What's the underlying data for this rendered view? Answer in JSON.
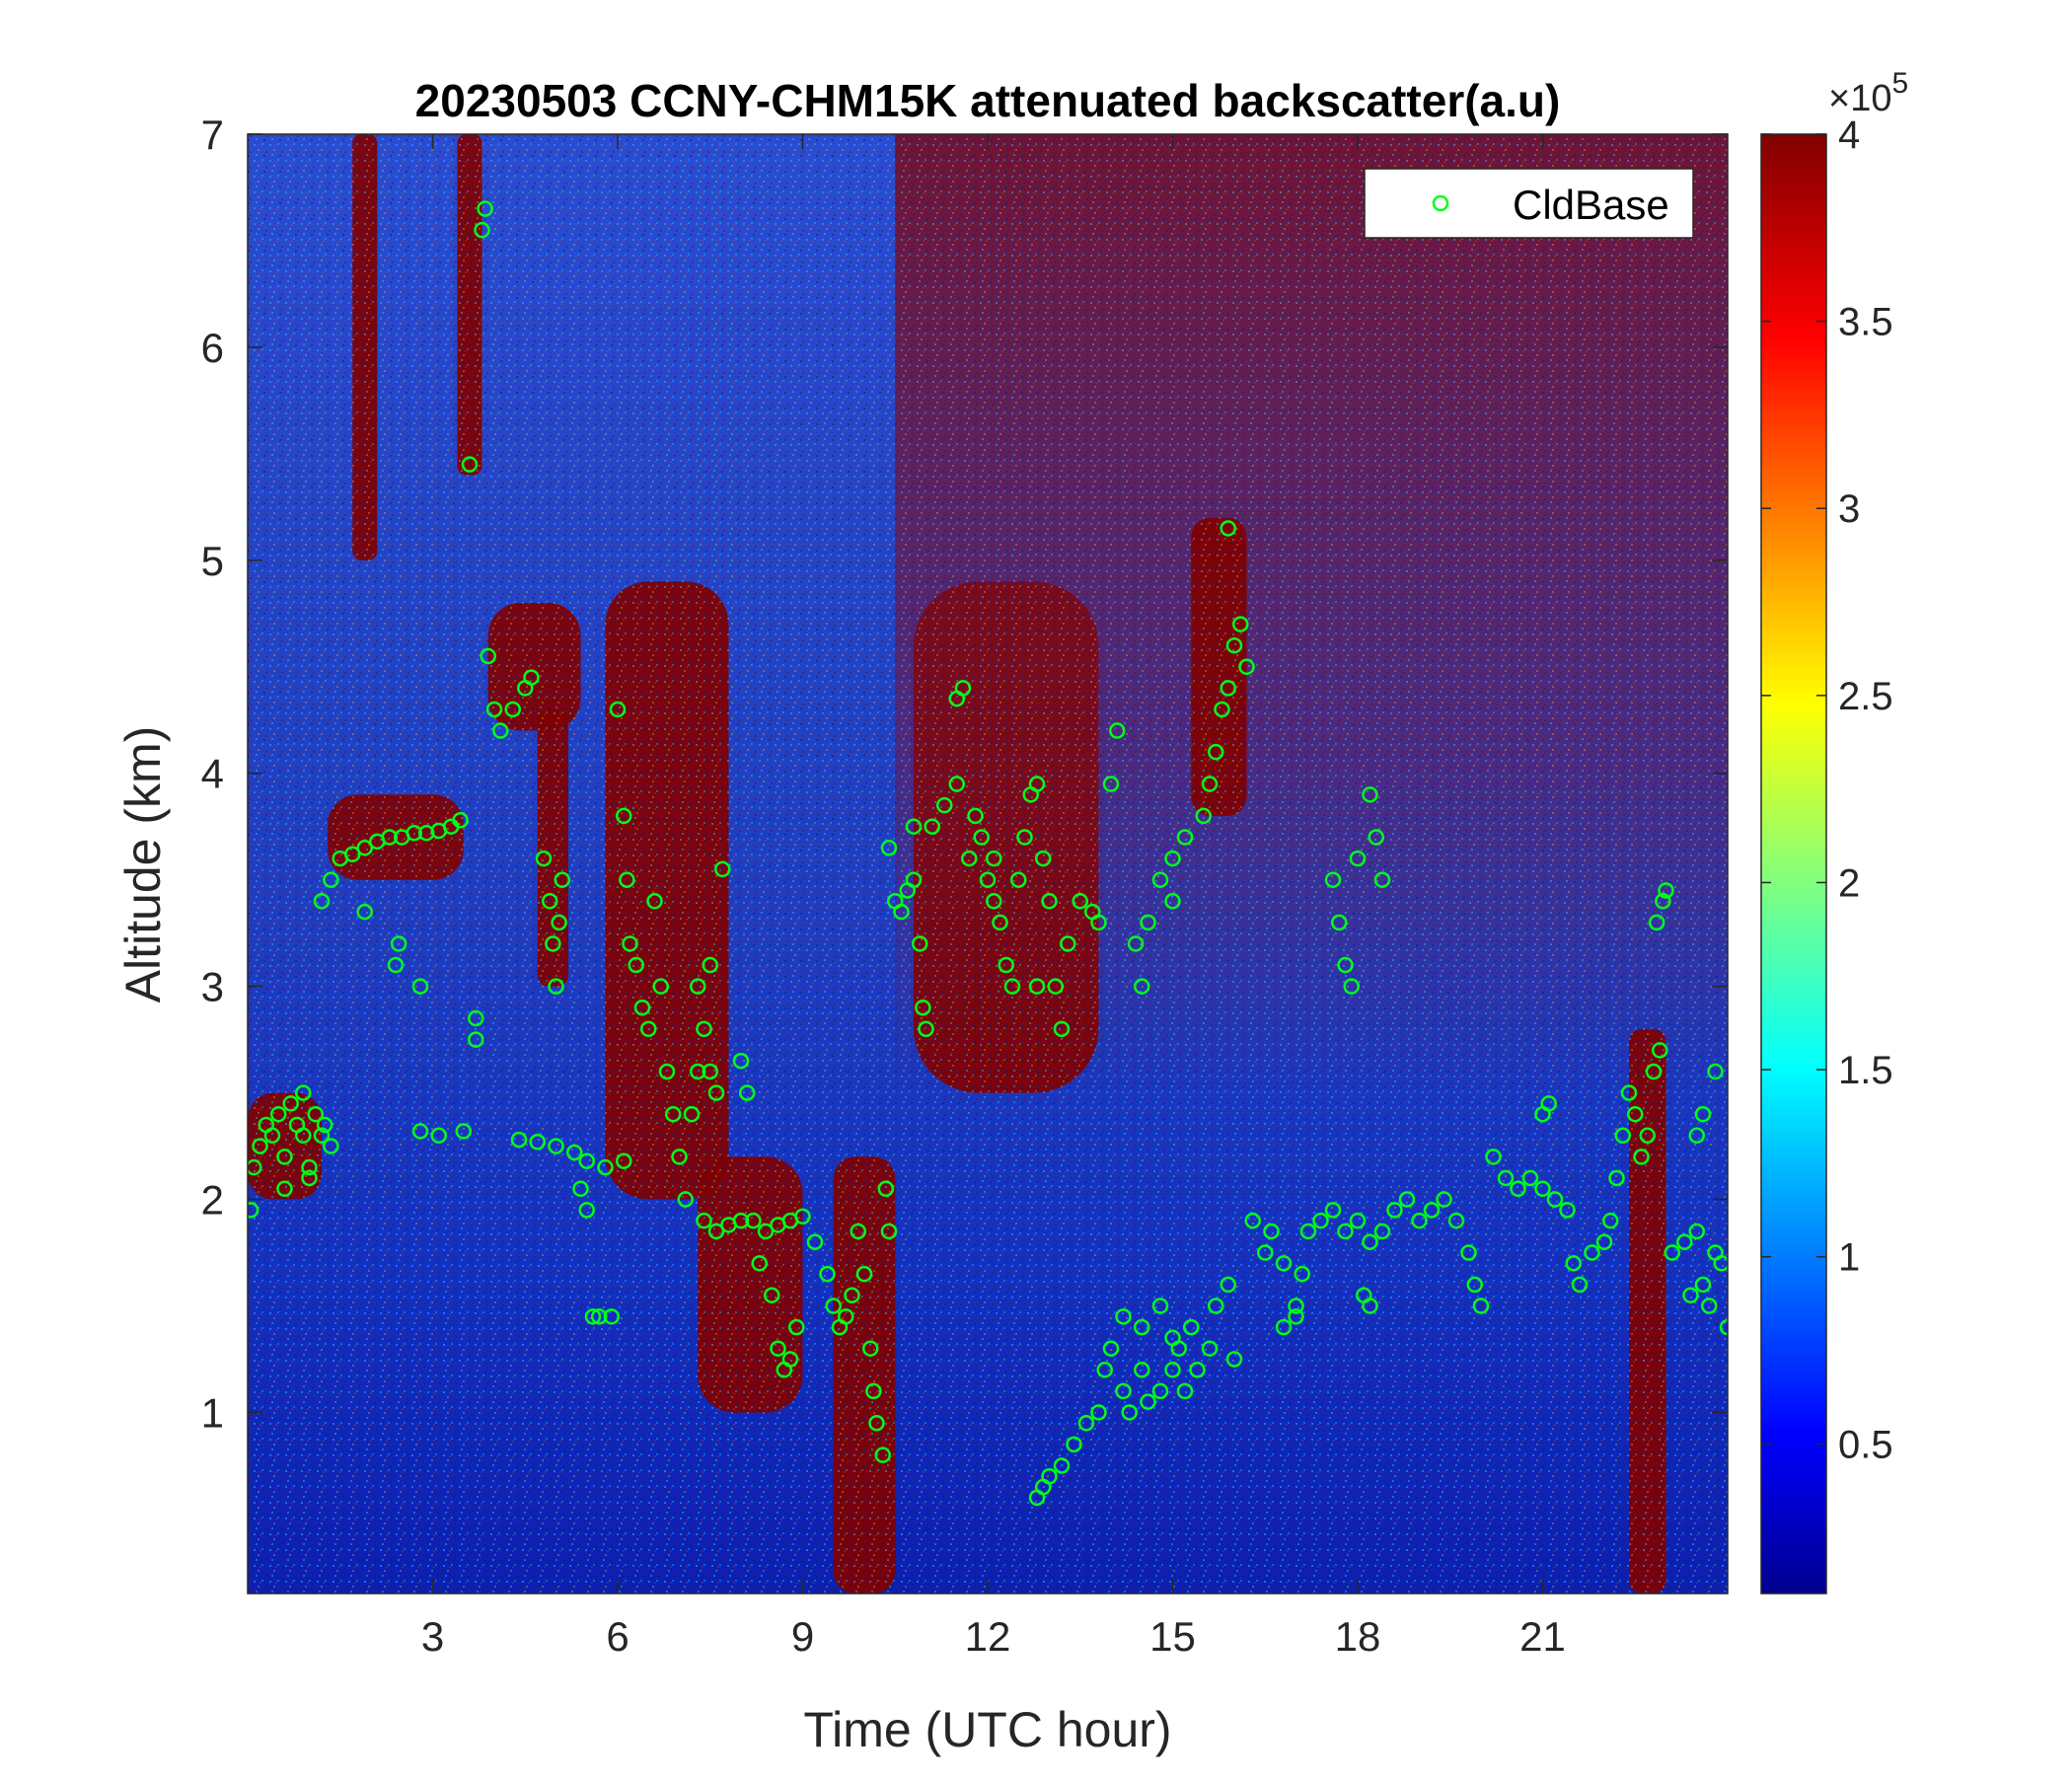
{
  "chart_data": {
    "type": "heatmap",
    "title": "20230503 CCNY-CHM15K attenuated backscatter(a.u)",
    "xlabel": "Time (UTC hour)",
    "ylabel": "Altitude (km)",
    "xlim": [
      0,
      24
    ],
    "ylim": [
      0.15,
      7
    ],
    "xticks": [
      3,
      6,
      9,
      12,
      15,
      18,
      21
    ],
    "xtick_labels": [
      "3",
      "6",
      "9",
      "12",
      "15",
      "18",
      "21"
    ],
    "yticks": [
      1,
      2,
      3,
      4,
      5,
      6,
      7
    ],
    "ytick_labels": [
      "1",
      "2",
      "3",
      "4",
      "5",
      "6",
      "7"
    ],
    "colorbar": {
      "colormap": "jet",
      "range": [
        10000,
        400000
      ],
      "ticks": [
        0.5,
        1,
        1.5,
        2,
        2.5,
        3,
        3.5,
        4
      ],
      "tick_labels": [
        "0.5",
        "1",
        "1.5",
        "2",
        "2.5",
        "3",
        "3.5",
        "4"
      ],
      "exponent_label": "×10",
      "exponent": "5"
    },
    "legend": {
      "position": "top-right",
      "entries": [
        "CldBase"
      ]
    },
    "colors": {
      "marker": "#00ff1a",
      "saturated": "#800000",
      "background_noise": "#1c3fb8",
      "low_clear": "#0a23b4"
    },
    "features": [
      {
        "kind": "cloud",
        "x_range": [
          0,
          1.2
        ],
        "y_range": [
          2.0,
          2.5
        ]
      },
      {
        "kind": "cloud",
        "x_range": [
          1.3,
          3.5
        ],
        "y_range": [
          3.5,
          3.9
        ]
      },
      {
        "kind": "cloud",
        "x_range": [
          1.7,
          2.1
        ],
        "y_range": [
          5.0,
          7.0
        ]
      },
      {
        "kind": "cloud",
        "x_range": [
          3.4,
          3.8
        ],
        "y_range": [
          5.4,
          7.0
        ]
      },
      {
        "kind": "cloud",
        "x_range": [
          3.9,
          5.4
        ],
        "y_range": [
          4.2,
          4.8
        ]
      },
      {
        "kind": "cloud",
        "x_range": [
          4.7,
          5.2
        ],
        "y_range": [
          3.0,
          4.3
        ]
      },
      {
        "kind": "cloud",
        "x_range": [
          5.8,
          7.8
        ],
        "y_range": [
          2.0,
          4.9
        ]
      },
      {
        "kind": "cloud",
        "x_range": [
          7.3,
          9.0
        ],
        "y_range": [
          1.0,
          2.2
        ]
      },
      {
        "kind": "cloud",
        "x_range": [
          9.5,
          10.5
        ],
        "y_range": [
          0.15,
          2.2
        ]
      },
      {
        "kind": "cloud",
        "x_range": [
          10.8,
          13.8
        ],
        "y_range": [
          2.5,
          4.9
        ]
      },
      {
        "kind": "haze",
        "x_range": [
          10.5,
          24.0
        ],
        "y_range": [
          2.5,
          7.0
        ]
      },
      {
        "kind": "cloud",
        "x_range": [
          15.3,
          16.2
        ],
        "y_range": [
          3.8,
          5.2
        ]
      },
      {
        "kind": "cloud",
        "x_range": [
          22.4,
          23.0
        ],
        "y_range": [
          0.15,
          2.8
        ]
      }
    ],
    "series": [
      {
        "name": "CldBase",
        "marker": "circle",
        "points": [
          [
            0.05,
            1.95
          ],
          [
            0.1,
            2.15
          ],
          [
            0.2,
            2.25
          ],
          [
            0.3,
            2.35
          ],
          [
            0.4,
            2.3
          ],
          [
            0.5,
            2.4
          ],
          [
            0.6,
            2.2
          ],
          [
            0.7,
            2.45
          ],
          [
            0.8,
            2.35
          ],
          [
            0.9,
            2.3
          ],
          [
            1.0,
            2.15
          ],
          [
            1.1,
            2.4
          ],
          [
            1.2,
            2.3
          ],
          [
            1.35,
            2.25
          ],
          [
            0.6,
            2.05
          ],
          [
            0.9,
            2.5
          ],
          [
            1.0,
            2.1
          ],
          [
            1.25,
            2.35
          ],
          [
            1.2,
            3.4
          ],
          [
            1.35,
            3.5
          ],
          [
            1.5,
            3.6
          ],
          [
            1.7,
            3.62
          ],
          [
            1.9,
            3.65
          ],
          [
            2.1,
            3.68
          ],
          [
            2.3,
            3.7
          ],
          [
            2.5,
            3.7
          ],
          [
            2.7,
            3.72
          ],
          [
            2.9,
            3.72
          ],
          [
            3.1,
            3.73
          ],
          [
            3.3,
            3.75
          ],
          [
            3.45,
            3.78
          ],
          [
            1.9,
            3.35
          ],
          [
            2.4,
            3.1
          ],
          [
            2.45,
            3.2
          ],
          [
            2.8,
            3.0
          ],
          [
            2.8,
            2.32
          ],
          [
            3.1,
            2.3
          ],
          [
            3.5,
            2.32
          ],
          [
            4.4,
            2.28
          ],
          [
            4.7,
            2.27
          ],
          [
            5.0,
            2.25
          ],
          [
            5.3,
            2.22
          ],
          [
            5.5,
            2.18
          ],
          [
            5.8,
            2.15
          ],
          [
            6.1,
            2.18
          ],
          [
            3.7,
            2.75
          ],
          [
            3.7,
            2.85
          ],
          [
            3.6,
            5.45
          ],
          [
            3.8,
            6.55
          ],
          [
            3.85,
            6.65
          ],
          [
            3.9,
            4.55
          ],
          [
            4.0,
            4.3
          ],
          [
            4.1,
            4.2
          ],
          [
            4.3,
            4.3
          ],
          [
            4.5,
            4.4
          ],
          [
            4.6,
            4.45
          ],
          [
            4.8,
            3.6
          ],
          [
            4.9,
            3.4
          ],
          [
            4.95,
            3.2
          ],
          [
            5.0,
            3.0
          ],
          [
            5.05,
            3.3
          ],
          [
            5.1,
            3.5
          ],
          [
            5.4,
            2.05
          ],
          [
            5.5,
            1.95
          ],
          [
            5.6,
            1.45
          ],
          [
            5.7,
            1.45
          ],
          [
            5.9,
            1.45
          ],
          [
            6.0,
            4.3
          ],
          [
            6.1,
            3.8
          ],
          [
            6.15,
            3.5
          ],
          [
            6.2,
            3.2
          ],
          [
            6.3,
            3.1
          ],
          [
            6.4,
            2.9
          ],
          [
            6.5,
            2.8
          ],
          [
            6.6,
            3.4
          ],
          [
            6.7,
            3.0
          ],
          [
            6.8,
            2.6
          ],
          [
            6.9,
            2.4
          ],
          [
            7.0,
            2.2
          ],
          [
            7.1,
            2.0
          ],
          [
            7.2,
            2.4
          ],
          [
            7.3,
            2.6
          ],
          [
            7.4,
            2.8
          ],
          [
            7.5,
            2.6
          ],
          [
            7.6,
            2.5
          ],
          [
            7.3,
            3.0
          ],
          [
            7.5,
            3.1
          ],
          [
            7.7,
            3.55
          ],
          [
            7.4,
            1.9
          ],
          [
            7.6,
            1.85
          ],
          [
            7.8,
            1.88
          ],
          [
            8.0,
            1.9
          ],
          [
            8.2,
            1.9
          ],
          [
            8.4,
            1.85
          ],
          [
            8.6,
            1.88
          ],
          [
            8.8,
            1.9
          ],
          [
            9.0,
            1.92
          ],
          [
            9.2,
            1.8
          ],
          [
            9.4,
            1.65
          ],
          [
            8.0,
            2.65
          ],
          [
            8.1,
            2.5
          ],
          [
            8.3,
            1.7
          ],
          [
            8.5,
            1.55
          ],
          [
            8.6,
            1.3
          ],
          [
            8.7,
            1.2
          ],
          [
            8.8,
            1.25
          ],
          [
            8.9,
            1.4
          ],
          [
            9.5,
            1.5
          ],
          [
            9.6,
            1.4
          ],
          [
            9.7,
            1.45
          ],
          [
            9.8,
            1.55
          ],
          [
            9.9,
            1.85
          ],
          [
            10.0,
            1.65
          ],
          [
            10.1,
            1.3
          ],
          [
            10.15,
            1.1
          ],
          [
            10.2,
            0.95
          ],
          [
            10.3,
            0.8
          ],
          [
            10.35,
            2.05
          ],
          [
            10.4,
            1.85
          ],
          [
            10.4,
            3.65
          ],
          [
            10.5,
            3.4
          ],
          [
            10.6,
            3.35
          ],
          [
            10.7,
            3.45
          ],
          [
            10.8,
            3.5
          ],
          [
            10.9,
            3.2
          ],
          [
            10.95,
            2.9
          ],
          [
            11.0,
            2.8
          ],
          [
            10.8,
            3.75
          ],
          [
            11.1,
            3.75
          ],
          [
            11.3,
            3.85
          ],
          [
            11.5,
            3.95
          ],
          [
            11.7,
            3.6
          ],
          [
            11.8,
            3.8
          ],
          [
            11.9,
            3.7
          ],
          [
            12.0,
            3.5
          ],
          [
            12.1,
            3.4
          ],
          [
            12.2,
            3.3
          ],
          [
            12.3,
            3.1
          ],
          [
            12.4,
            3.0
          ],
          [
            12.5,
            3.5
          ],
          [
            12.6,
            3.7
          ],
          [
            12.7,
            3.9
          ],
          [
            12.8,
            3.95
          ],
          [
            12.9,
            3.6
          ],
          [
            13.0,
            3.4
          ],
          [
            13.1,
            3.0
          ],
          [
            13.2,
            2.8
          ],
          [
            13.3,
            3.2
          ],
          [
            13.5,
            3.4
          ],
          [
            13.7,
            3.35
          ],
          [
            13.8,
            3.3
          ],
          [
            11.5,
            4.35
          ],
          [
            11.6,
            4.4
          ],
          [
            12.1,
            3.6
          ],
          [
            12.8,
            3.0
          ],
          [
            14.0,
            3.95
          ],
          [
            14.1,
            4.2
          ],
          [
            12.8,
            0.6
          ],
          [
            12.9,
            0.65
          ],
          [
            13.0,
            0.7
          ],
          [
            13.2,
            0.75
          ],
          [
            13.4,
            0.85
          ],
          [
            13.6,
            0.95
          ],
          [
            13.8,
            1.0
          ],
          [
            13.9,
            1.2
          ],
          [
            14.0,
            1.3
          ],
          [
            14.2,
            1.1
          ],
          [
            14.3,
            1.0
          ],
          [
            14.5,
            1.2
          ],
          [
            14.6,
            1.05
          ],
          [
            14.8,
            1.1
          ],
          [
            15.0,
            1.2
          ],
          [
            15.1,
            1.3
          ],
          [
            15.2,
            1.1
          ],
          [
            15.3,
            1.4
          ],
          [
            15.4,
            1.2
          ],
          [
            15.6,
            1.3
          ],
          [
            15.7,
            1.5
          ],
          [
            15.9,
            1.6
          ],
          [
            16.0,
            1.25
          ],
          [
            14.2,
            1.45
          ],
          [
            14.5,
            1.4
          ],
          [
            14.8,
            1.5
          ],
          [
            15.0,
            1.35
          ],
          [
            14.4,
            3.2
          ],
          [
            14.6,
            3.3
          ],
          [
            14.8,
            3.5
          ],
          [
            15.0,
            3.6
          ],
          [
            15.2,
            3.7
          ],
          [
            14.5,
            3.0
          ],
          [
            15.0,
            3.4
          ],
          [
            15.5,
            3.8
          ],
          [
            15.6,
            3.95
          ],
          [
            15.7,
            4.1
          ],
          [
            15.8,
            4.3
          ],
          [
            15.9,
            4.4
          ],
          [
            16.0,
            4.6
          ],
          [
            16.1,
            4.7
          ],
          [
            16.2,
            4.5
          ],
          [
            15.9,
            5.15
          ],
          [
            16.3,
            1.9
          ],
          [
            16.5,
            1.75
          ],
          [
            16.6,
            1.85
          ],
          [
            16.8,
            1.7
          ],
          [
            17.0,
            1.5
          ],
          [
            17.1,
            1.65
          ],
          [
            17.2,
            1.85
          ],
          [
            17.4,
            1.9
          ],
          [
            17.6,
            1.95
          ],
          [
            17.8,
            1.85
          ],
          [
            18.0,
            1.9
          ],
          [
            18.2,
            1.8
          ],
          [
            18.4,
            1.85
          ],
          [
            18.6,
            1.95
          ],
          [
            18.8,
            2.0
          ],
          [
            19.0,
            1.9
          ],
          [
            19.2,
            1.95
          ],
          [
            19.4,
            2.0
          ],
          [
            19.6,
            1.9
          ],
          [
            19.8,
            1.75
          ],
          [
            19.9,
            1.6
          ],
          [
            20.0,
            1.5
          ],
          [
            16.8,
            1.4
          ],
          [
            17.0,
            1.45
          ],
          [
            18.1,
            1.55
          ],
          [
            18.2,
            1.5
          ],
          [
            17.6,
            3.5
          ],
          [
            17.7,
            3.3
          ],
          [
            17.8,
            3.1
          ],
          [
            17.9,
            3.0
          ],
          [
            18.0,
            3.6
          ],
          [
            18.2,
            3.9
          ],
          [
            18.3,
            3.7
          ],
          [
            18.4,
            3.5
          ],
          [
            20.2,
            2.2
          ],
          [
            20.4,
            2.1
          ],
          [
            20.6,
            2.05
          ],
          [
            20.8,
            2.1
          ],
          [
            21.0,
            2.05
          ],
          [
            21.2,
            2.0
          ],
          [
            21.4,
            1.95
          ],
          [
            21.5,
            1.7
          ],
          [
            21.6,
            1.6
          ],
          [
            21.8,
            1.75
          ],
          [
            22.0,
            1.8
          ],
          [
            22.1,
            1.9
          ],
          [
            22.2,
            2.1
          ],
          [
            22.3,
            2.3
          ],
          [
            22.4,
            2.5
          ],
          [
            22.5,
            2.4
          ],
          [
            22.6,
            2.2
          ],
          [
            22.7,
            2.3
          ],
          [
            22.8,
            2.6
          ],
          [
            22.9,
            2.7
          ],
          [
            21.0,
            2.4
          ],
          [
            21.1,
            2.45
          ],
          [
            22.85,
            3.3
          ],
          [
            22.95,
            3.4
          ],
          [
            23.0,
            3.45
          ],
          [
            23.1,
            1.75
          ],
          [
            23.3,
            1.8
          ],
          [
            23.5,
            1.85
          ],
          [
            23.6,
            1.6
          ],
          [
            23.7,
            1.5
          ],
          [
            23.8,
            1.75
          ],
          [
            23.9,
            1.7
          ],
          [
            24.0,
            1.4
          ],
          [
            23.4,
            1.55
          ],
          [
            23.6,
            2.4
          ],
          [
            23.8,
            2.6
          ],
          [
            23.5,
            2.3
          ]
        ]
      }
    ]
  }
}
